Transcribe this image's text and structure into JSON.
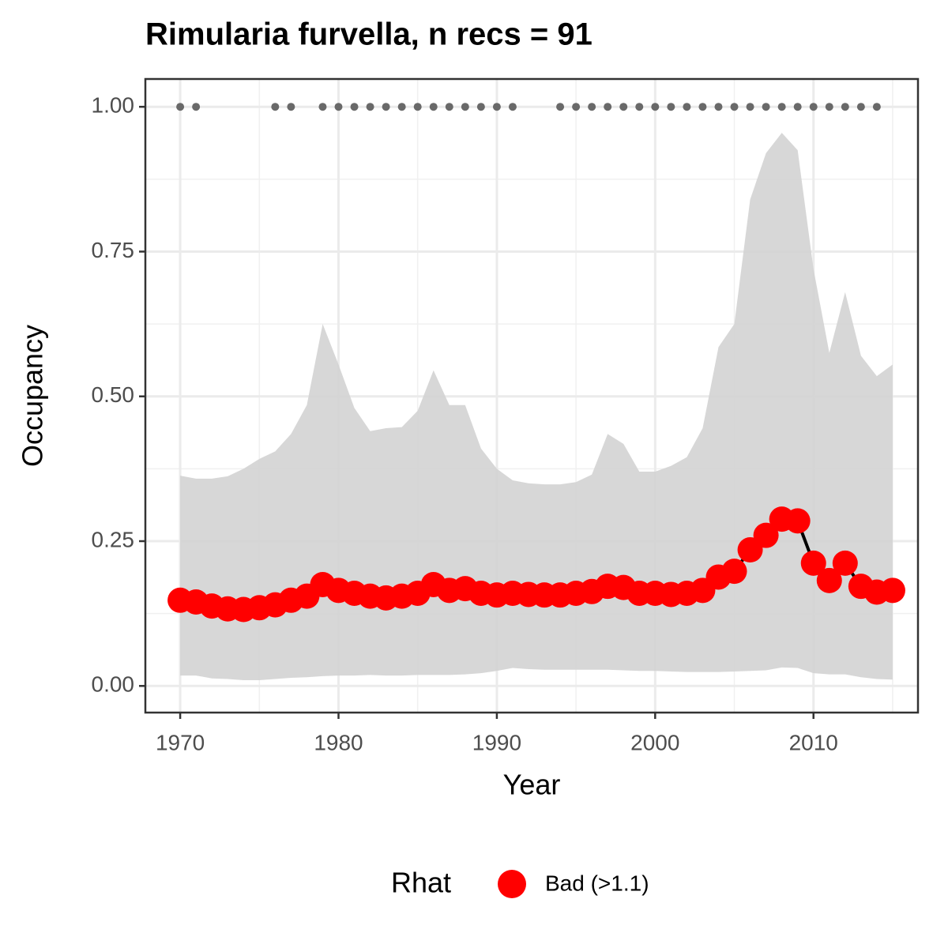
{
  "chart_data": {
    "type": "line",
    "title": "Rimularia furvella, n recs = 91",
    "x_label": "Year",
    "y_label": "Occupancy",
    "legend_title": "Rhat",
    "x": [
      1970,
      1971,
      1972,
      1973,
      1974,
      1975,
      1976,
      1977,
      1978,
      1979,
      1980,
      1981,
      1982,
      1983,
      1984,
      1985,
      1986,
      1987,
      1988,
      1989,
      1990,
      1991,
      1992,
      1993,
      1994,
      1995,
      1996,
      1997,
      1998,
      1999,
      2000,
      2001,
      2002,
      2003,
      2004,
      2005,
      2006,
      2007,
      2008,
      2009,
      2010,
      2011,
      2012,
      2013,
      2014,
      2015
    ],
    "series": [
      {
        "name": "Bad (>1.1)",
        "color": "#ff0000",
        "line_color": "#000000",
        "values": [
          0.148,
          0.145,
          0.138,
          0.133,
          0.132,
          0.135,
          0.14,
          0.148,
          0.155,
          0.175,
          0.165,
          0.16,
          0.155,
          0.152,
          0.155,
          0.16,
          0.175,
          0.165,
          0.168,
          0.16,
          0.157,
          0.16,
          0.158,
          0.157,
          0.157,
          0.16,
          0.163,
          0.172,
          0.17,
          0.16,
          0.16,
          0.158,
          0.16,
          0.165,
          0.188,
          0.198,
          0.235,
          0.26,
          0.288,
          0.285,
          0.212,
          0.182,
          0.212,
          0.172,
          0.162,
          0.165
        ]
      }
    ],
    "ribbon": {
      "color": "#d3d3d3",
      "upper": [
        0.363,
        0.358,
        0.358,
        0.362,
        0.375,
        0.392,
        0.405,
        0.435,
        0.485,
        0.625,
        0.555,
        0.48,
        0.44,
        0.445,
        0.447,
        0.475,
        0.545,
        0.485,
        0.485,
        0.41,
        0.375,
        0.355,
        0.35,
        0.348,
        0.348,
        0.352,
        0.365,
        0.435,
        0.418,
        0.37,
        0.37,
        0.38,
        0.395,
        0.445,
        0.585,
        0.625,
        0.84,
        0.92,
        0.955,
        0.925,
        0.72,
        0.575,
        0.68,
        0.57,
        0.535,
        0.555
      ],
      "lower": [
        0.018,
        0.018,
        0.013,
        0.012,
        0.01,
        0.01,
        0.012,
        0.014,
        0.015,
        0.017,
        0.018,
        0.018,
        0.019,
        0.018,
        0.018,
        0.019,
        0.019,
        0.019,
        0.02,
        0.022,
        0.026,
        0.031,
        0.029,
        0.028,
        0.028,
        0.028,
        0.028,
        0.028,
        0.027,
        0.026,
        0.026,
        0.025,
        0.024,
        0.024,
        0.024,
        0.025,
        0.026,
        0.027,
        0.032,
        0.031,
        0.022,
        0.02,
        0.02,
        0.015,
        0.012,
        0.011
      ]
    },
    "records": {
      "color": "#696969",
      "x": [
        1970,
        1971,
        1976,
        1977,
        1979,
        1980,
        1981,
        1982,
        1983,
        1984,
        1985,
        1986,
        1987,
        1988,
        1989,
        1990,
        1991,
        1994,
        1995,
        1996,
        1997,
        1998,
        1999,
        2000,
        2001,
        2002,
        2003,
        2004,
        2005,
        2006,
        2007,
        2008,
        2009,
        2010,
        2011,
        2012,
        2013,
        2014
      ],
      "values": [
        1,
        1,
        1,
        1,
        1,
        1,
        1,
        1,
        1,
        1,
        1,
        1,
        1,
        1,
        1,
        1,
        1,
        1,
        1,
        1,
        1,
        1,
        1,
        1,
        1,
        1,
        1,
        1,
        1,
        1,
        1,
        1,
        1,
        1,
        1,
        1,
        1,
        1
      ]
    },
    "xlim": [
      1967.8,
      2016.6
    ],
    "ylim": [
      -0.046,
      1.048
    ],
    "xticks": [
      1970,
      1980,
      1990,
      2000,
      2010
    ],
    "xminor": [
      1975,
      1985,
      1995,
      2005,
      2015
    ],
    "yticks": [
      {
        "value": 0,
        "label": "0.00"
      },
      {
        "value": 0.25,
        "label": "0.25"
      },
      {
        "value": 0.5,
        "label": "0.50"
      },
      {
        "value": 0.75,
        "label": "0.75"
      },
      {
        "value": 1,
        "label": "1.00"
      }
    ],
    "yminor": [
      0.125,
      0.375,
      0.625,
      0.875
    ],
    "grid": true
  }
}
